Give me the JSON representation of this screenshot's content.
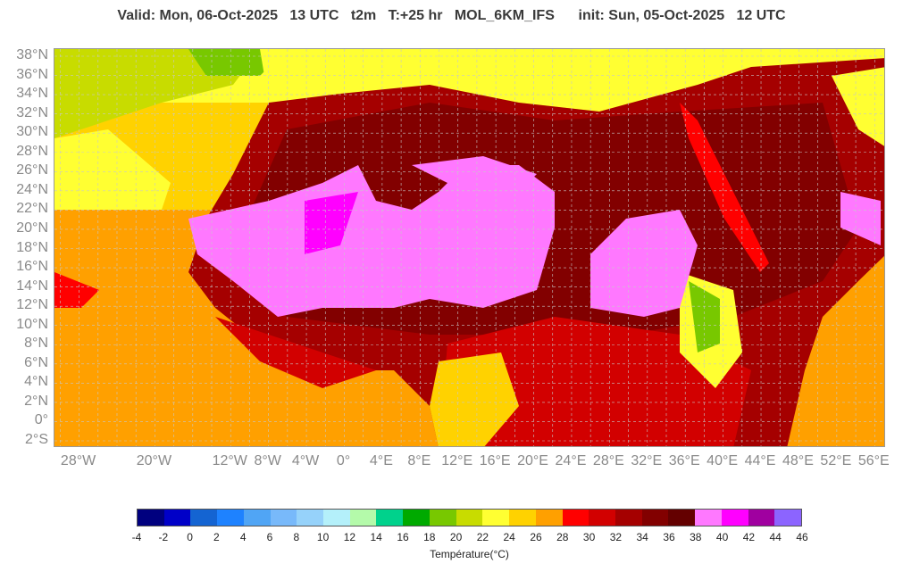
{
  "header": {
    "title": "Valid: Mon, 06-Oct-2025   13 UTC   t2m   T:+25 hr   MOL_6KM_IFS      init: Sun, 05-Oct-2025   12 UTC"
  },
  "map": {
    "latitude_labels": [
      "38°N",
      "36°N",
      "34°N",
      "32°N",
      "30°N",
      "28°N",
      "26°N",
      "24°N",
      "22°N",
      "20°N",
      "18°N",
      "16°N",
      "14°N",
      "12°N",
      "10°N",
      "8°N",
      "6°N",
      "4°N",
      "2°N",
      "0°",
      "2°S"
    ],
    "longitude_labels": [
      "28°W",
      "20°W",
      "12°W",
      "8°W",
      "4°W",
      "0°",
      "4°E",
      "8°E",
      "12°E",
      "16°E",
      "20°E",
      "24°E",
      "28°E",
      "32°E",
      "36°E",
      "40°E",
      "44°E",
      "48°E",
      "52°E",
      "56°E"
    ],
    "longitude_values": [
      -28,
      -20,
      -12,
      -8,
      -4,
      0,
      4,
      8,
      12,
      16,
      20,
      24,
      28,
      32,
      36,
      40,
      44,
      48,
      52,
      56
    ],
    "grid": true
  },
  "colorbar": {
    "title": "Température(°C)",
    "ticks": [
      "-4",
      "-2",
      "0",
      "2",
      "4",
      "6",
      "8",
      "10",
      "12",
      "14",
      "16",
      "18",
      "20",
      "22",
      "24",
      "26",
      "28",
      "30",
      "32",
      "34",
      "36",
      "38",
      "40",
      "42",
      "44",
      "46"
    ],
    "colors": [
      "#00007f",
      "#0000c8",
      "#1464d2",
      "#1e82ff",
      "#50a5f5",
      "#78b9fa",
      "#96d2fa",
      "#b4f0fa",
      "#b4faaa",
      "#00d28c",
      "#00aa00",
      "#78c800",
      "#c8dc00",
      "#ffff32",
      "#ffd200",
      "#ffa000",
      "#ff0000",
      "#d20000",
      "#a50000",
      "#820000",
      "#640000",
      "#ff78ff",
      "#ff00ff",
      "#a000a0",
      "#8c64ff"
    ]
  }
}
